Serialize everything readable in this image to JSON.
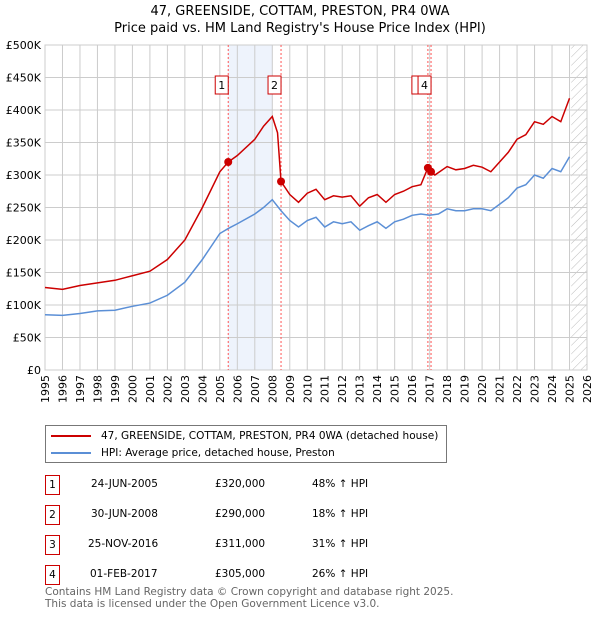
{
  "title": "47, GREENSIDE, COTTAM, PRESTON, PR4 0WA",
  "subtitle": "Price paid vs. HM Land Registry's House Price Index (HPI)",
  "colors": {
    "property": "#cc0000",
    "hpi": "#5b8fd6"
  },
  "legend": {
    "property": "47, GREENSIDE, COTTAM, PRESTON, PR4 0WA (detached house)",
    "hpi": "HPI: Average price, detached house, Preston"
  },
  "sales": [
    {
      "num": "1",
      "date": "24-JUN-2005",
      "price": "£320,000",
      "hpi": "48% ↑ HPI",
      "x": 2005.48,
      "y": 320
    },
    {
      "num": "2",
      "date": "30-JUN-2008",
      "price": "£290,000",
      "hpi": "18% ↑ HPI",
      "x": 2008.5,
      "y": 290
    },
    {
      "num": "3",
      "date": "25-NOV-2016",
      "price": "£311,000",
      "hpi": "31% ↑ HPI",
      "x": 2016.9,
      "y": 311
    },
    {
      "num": "4",
      "date": "01-FEB-2017",
      "price": "£305,000",
      "hpi": "26% ↑ HPI",
      "x": 2017.08,
      "y": 305
    }
  ],
  "footer": [
    "Contains HM Land Registry data © Crown copyright and database right 2025.",
    "This data is licensed under the Open Government Licence v3.0."
  ],
  "chart_data": {
    "type": "line",
    "xlim": [
      1995,
      2026
    ],
    "ylim": [
      0,
      500
    ],
    "yticks": [
      "£0",
      "£50K",
      "£100K",
      "£150K",
      "£200K",
      "£250K",
      "£300K",
      "£350K",
      "£400K",
      "£450K",
      "£500K"
    ],
    "xticks": [
      "1995",
      "1996",
      "1997",
      "1998",
      "1999",
      "2000",
      "2001",
      "2002",
      "2003",
      "2004",
      "2005",
      "2006",
      "2007",
      "2008",
      "2009",
      "2010",
      "2011",
      "2012",
      "2013",
      "2014",
      "2015",
      "2016",
      "2017",
      "2018",
      "2019",
      "2020",
      "2021",
      "2022",
      "2023",
      "2024",
      "2025",
      "2026"
    ],
    "shaded_range": [
      2005.48,
      2008.0
    ],
    "forecast_from": 2025.1,
    "series": [
      {
        "name": "property",
        "x": [
          1995,
          1996,
          1997,
          1998,
          1999,
          2000,
          2001,
          2002,
          2003,
          2004,
          2005,
          2005.48,
          2006,
          2007,
          2007.5,
          2008,
          2008.3,
          2008.5,
          2009,
          2009.5,
          2010,
          2010.5,
          2011,
          2011.5,
          2012,
          2012.5,
          2013,
          2013.5,
          2014,
          2014.5,
          2015,
          2015.5,
          2016,
          2016.5,
          2016.9,
          2017.08,
          2017.3,
          2018,
          2018.5,
          2019,
          2019.5,
          2020,
          2020.5,
          2021,
          2021.5,
          2022,
          2022.5,
          2023,
          2023.5,
          2024,
          2024.5,
          2025
        ],
        "y": [
          127,
          124,
          130,
          134,
          138,
          145,
          152,
          170,
          200,
          250,
          305,
          320,
          330,
          355,
          375,
          390,
          365,
          290,
          270,
          258,
          272,
          278,
          262,
          268,
          266,
          268,
          252,
          265,
          270,
          258,
          270,
          275,
          282,
          285,
          311,
          305,
          300,
          313,
          308,
          310,
          315,
          312,
          305,
          320,
          335,
          355,
          362,
          382,
          378,
          390,
          382,
          418
        ]
      },
      {
        "name": "hpi",
        "x": [
          1995,
          1996,
          1997,
          1998,
          1999,
          2000,
          2001,
          2002,
          2003,
          2004,
          2005,
          2005.5,
          2006,
          2007,
          2007.5,
          2008,
          2008.5,
          2009,
          2009.5,
          2010,
          2010.5,
          2011,
          2011.5,
          2012,
          2012.5,
          2013,
          2013.5,
          2014,
          2014.5,
          2015,
          2015.5,
          2016,
          2016.5,
          2017,
          2017.5,
          2018,
          2018.5,
          2019,
          2019.5,
          2020,
          2020.5,
          2021,
          2021.5,
          2022,
          2022.5,
          2023,
          2023.5,
          2024,
          2024.5,
          2025
        ],
        "y": [
          85,
          84,
          87,
          91,
          92,
          98,
          103,
          115,
          135,
          170,
          210,
          218,
          225,
          240,
          250,
          262,
          245,
          230,
          220,
          230,
          235,
          220,
          228,
          225,
          228,
          215,
          222,
          228,
          218,
          228,
          232,
          238,
          240,
          238,
          240,
          248,
          245,
          245,
          248,
          248,
          245,
          255,
          265,
          280,
          285,
          300,
          295,
          310,
          305,
          328
        ]
      }
    ]
  }
}
